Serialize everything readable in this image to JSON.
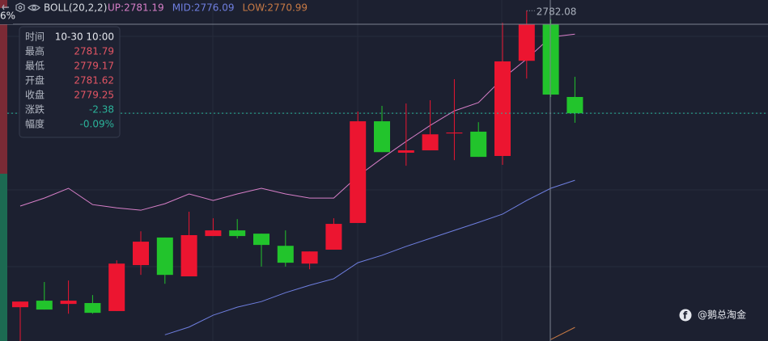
{
  "chart_data": {
    "type": "candlestick",
    "indicator": "BOLL(20,2,2)",
    "colors": {
      "up": "#ec1530",
      "down": "#22c42c"
    },
    "ylim": [
      2770.94,
      2782.44
    ],
    "series": {
      "open": [
        2772.08,
        2772.3,
        2772.19,
        2772.22,
        2771.95,
        2773.5,
        2774.43,
        2773.12,
        2774.48,
        2774.67,
        2774.56,
        2774.15,
        2773.55,
        2774.02,
        2774.92,
        2778.35,
        2777.29,
        2777.37,
        2777.94,
        2778.0,
        2777.18,
        2780.39,
        2781.62,
        2779.17
      ],
      "high": [
        2772.27,
        2772.93,
        2772.98,
        2772.49,
        2773.66,
        2774.64,
        2774.43,
        2775.3,
        2775.08,
        2775.05,
        2774.56,
        2774.67,
        2773.96,
        2775.08,
        2778.68,
        2778.87,
        2778.95,
        2779.06,
        2779.77,
        2778.32,
        2781.67,
        2782.08,
        2781.79,
        2779.85
      ],
      "low": [
        2770.9,
        2772.0,
        2771.86,
        2771.86,
        2771.95,
        2773.17,
        2772.87,
        2773.12,
        2774.48,
        2774.4,
        2773.45,
        2773.45,
        2773.36,
        2774.02,
        2774.92,
        2777.31,
        2776.85,
        2777.37,
        2777.04,
        2777.15,
        2776.88,
        2779.79,
        2779.17,
        2778.3
      ],
      "close": [
        2772.27,
        2772.0,
        2772.3,
        2771.89,
        2773.55,
        2774.29,
        2773.17,
        2774.51,
        2774.67,
        2774.48,
        2774.18,
        2773.58,
        2773.96,
        2774.89,
        2778.35,
        2777.31,
        2777.37,
        2777.91,
        2777.97,
        2777.15,
        2780.37,
        2781.62,
        2779.25,
        2778.62
      ]
    },
    "bands": [
      {
        "name": "UP:2781.19",
        "color": "#d77fc8",
        "values": [
          2775.49,
          2775.76,
          2776.09,
          2775.54,
          2775.43,
          2775.35,
          2775.57,
          2775.9,
          2775.68,
          2775.9,
          2776.09,
          2775.9,
          2775.76,
          2775.76,
          2776.5,
          2777.1,
          2777.67,
          2778.21,
          2778.7,
          2778.98,
          2779.79,
          2780.45,
          2781.19,
          2781.29
        ]
      },
      {
        "name": "MID:2776.09",
        "color": "#6f7fe0",
        "values": [
          null,
          null,
          null,
          null,
          null,
          null,
          2771.15,
          2771.41,
          2771.81,
          2772.08,
          2772.27,
          2772.57,
          2772.82,
          2773.04,
          2773.58,
          2773.83,
          2774.13,
          2774.4,
          2774.67,
          2774.94,
          2775.22,
          2775.68,
          2776.09,
          2776.36
        ]
      },
      {
        "name": "LOW:2770.99",
        "color": "#c87a45",
        "values": [
          null,
          null,
          null,
          null,
          null,
          null,
          null,
          null,
          null,
          null,
          null,
          null,
          null,
          null,
          null,
          null,
          null,
          null,
          null,
          null,
          null,
          null,
          2770.99,
          2771.4
        ]
      }
    ],
    "annotations": [
      {
        "label": "2782.08"
      }
    ],
    "corner_label": "6%",
    "watermark": "@鹅总淘金",
    "tooltip": [
      {
        "label": "时间",
        "value": "10-30 10:00",
        "color": "#e6e8ee"
      },
      {
        "label": "最高",
        "value": "2781.79",
        "color": "#e35564"
      },
      {
        "label": "最低",
        "value": "2779.17",
        "color": "#e35564"
      },
      {
        "label": "开盘",
        "value": "2781.62",
        "color": "#e35564"
      },
      {
        "label": "收盘",
        "value": "2779.25",
        "color": "#e35564"
      },
      {
        "label": "涨跌",
        "value": "-2.38",
        "color": "#2bb39a"
      },
      {
        "label": "幅度",
        "value": "-0.09%",
        "color": "#2bb39a"
      }
    ]
  }
}
